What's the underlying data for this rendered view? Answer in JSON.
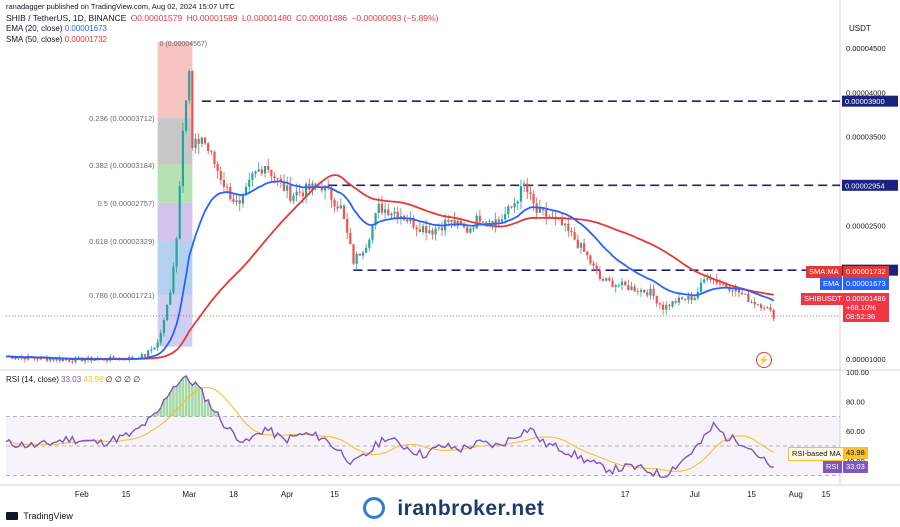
{
  "header": {
    "author_line": "ranadagger published on TradingView.com, Aug 02, 2024 15:07 UTC",
    "symbol": "SHIB / TetherUS, 1D, BINANCE",
    "ohlc": {
      "open": "O0.00001579",
      "high": "H0.00001589",
      "low": "L0.00001480",
      "close": "C0.00001486",
      "change": "−0.00000093 (−5.89%)"
    },
    "ema_label": "EMA (20, close)",
    "ema_value": "0.00001673",
    "sma_label": "SMA (50, close)",
    "sma_value": "0.00001732",
    "currency": "USDT"
  },
  "price_axis": {
    "ticks": [
      {
        "label": "0.00004500",
        "value": 4.5e-05
      },
      {
        "label": "0.00004000",
        "value": 4e-05
      },
      {
        "label": "0.00003500",
        "value": 3.5e-05
      },
      {
        "label": "0.00002500",
        "value": 2.5e-05
      },
      {
        "label": "0.00001000",
        "value": 1e-05
      }
    ]
  },
  "levels": [
    {
      "label": "0.00003900",
      "value": 3.9e-05
    },
    {
      "label": "0.00002954",
      "value": 2.954e-05
    },
    {
      "label": "0.00002000",
      "value": 2e-05
    }
  ],
  "fib": [
    {
      "label": "0.236 (0.00003712)",
      "value": 3.712e-05,
      "fill": "#f4b8b8"
    },
    {
      "label": "0.382 (0.00003184)",
      "value": 3.184e-05,
      "fill": "#bdbdbd"
    },
    {
      "label": "0.5 (0.00002757)",
      "value": 2.757e-05,
      "fill": "#a8dca8"
    },
    {
      "label": "0.618 (0.00002329)",
      "value": 2.329e-05,
      "fill": "#c9b8e6"
    },
    {
      "label": "0.786 (0.00001721)",
      "value": 1.721e-05,
      "fill": "#a8c8ec"
    },
    {
      "label": "",
      "value": 1.14e-05,
      "fill": "#c7c7ee"
    }
  ],
  "fib_top": {
    "label": "0 (0.00004567)",
    "value": 4.567e-05
  },
  "price_tags": [
    {
      "name": "SMA:MA",
      "value": "0.00001732",
      "color": "#e53935"
    },
    {
      "name": "EMA",
      "value": "0.00001673",
      "color": "#2962ff"
    },
    {
      "name": "SHIBUSDT",
      "value": "0.00001486",
      "change": "+68.10%",
      "countdown": "08:52:36",
      "color": "#f23645"
    }
  ],
  "rsi": {
    "label": "RSI (14, close)",
    "value": "33.03",
    "ma_value": "43.98",
    "dots": "∅ ∅ ∅ ∅",
    "axis": [
      "100.00",
      "80.00",
      "60.00",
      "40.00"
    ],
    "tag_ma": "RSI-based MA",
    "tag_rsi": "RSI",
    "ma_tag_value": "43.98",
    "rsi_tag_value": "33.03"
  },
  "time_axis": [
    "Feb",
    "15",
    "Mar",
    "18",
    "Apr",
    "15",
    "17",
    "Jul",
    "15",
    "Aug",
    "15"
  ],
  "footer": {
    "brand": "TradingView",
    "watermark": "iranbroker.net"
  },
  "chart_data": {
    "type": "candlestick",
    "title": "SHIB / TetherUS, 1D, BINANCE",
    "ylabel": "USDT",
    "ylim": [
      9e-06,
      4.7e-05
    ],
    "series": [
      {
        "name": "EMA (20, close)",
        "color": "#2962ff"
      },
      {
        "name": "SMA (50, close)",
        "color": "#e53935"
      }
    ],
    "close_points": [
      [
        0,
        1.03e-05
      ],
      [
        10,
        1.01e-05
      ],
      [
        20,
        9.9e-06
      ],
      [
        30,
        1e-05
      ],
      [
        40,
        1.01e-05
      ],
      [
        44,
        1.04e-05
      ],
      [
        48,
        1.18e-05
      ],
      [
        50,
        1.42e-05
      ],
      [
        52,
        1.78e-05
      ],
      [
        54,
        2.36e-05
      ],
      [
        56,
        3.65e-05
      ],
      [
        58,
        4.2e-05
      ],
      [
        59,
        3.35e-05
      ],
      [
        62,
        3.5e-05
      ],
      [
        66,
        3.2e-05
      ],
      [
        70,
        2.9e-05
      ],
      [
        74,
        2.7e-05
      ],
      [
        78,
        3.05e-05
      ],
      [
        82,
        3.2e-05
      ],
      [
        86,
        3e-05
      ],
      [
        90,
        2.85e-05
      ],
      [
        95,
        2.9e-05
      ],
      [
        100,
        2.95e-05
      ],
      [
        106,
        2.7e-05
      ],
      [
        110,
        2.1e-05
      ],
      [
        114,
        2.3e-05
      ],
      [
        118,
        2.7e-05
      ],
      [
        124,
        2.65e-05
      ],
      [
        130,
        2.5e-05
      ],
      [
        135,
        2.45e-05
      ],
      [
        140,
        2.55e-05
      ],
      [
        146,
        2.45e-05
      ],
      [
        150,
        2.6e-05
      ],
      [
        156,
        2.55e-05
      ],
      [
        160,
        2.7e-05
      ],
      [
        164,
        2.95e-05
      ],
      [
        168,
        2.65e-05
      ],
      [
        172,
        2.6e-05
      ],
      [
        176,
        2.5e-05
      ],
      [
        180,
        2.35e-05
      ],
      [
        184,
        2.15e-05
      ],
      [
        188,
        1.9e-05
      ],
      [
        192,
        1.85e-05
      ],
      [
        198,
        1.8e-05
      ],
      [
        204,
        1.75e-05
      ],
      [
        208,
        1.58e-05
      ],
      [
        212,
        1.65e-05
      ],
      [
        218,
        1.7e-05
      ],
      [
        222,
        1.95e-05
      ],
      [
        226,
        1.85e-05
      ],
      [
        230,
        1.8e-05
      ],
      [
        236,
        1.65e-05
      ],
      [
        240,
        1.6e-05
      ],
      [
        243,
        1.49e-05
      ]
    ],
    "rsi_points": [
      [
        0,
        52
      ],
      [
        10,
        50
      ],
      [
        20,
        55
      ],
      [
        30,
        52
      ],
      [
        40,
        58
      ],
      [
        48,
        72
      ],
      [
        52,
        88
      ],
      [
        56,
        96
      ],
      [
        60,
        92
      ],
      [
        64,
        80
      ],
      [
        70,
        62
      ],
      [
        76,
        52
      ],
      [
        82,
        62
      ],
      [
        88,
        54
      ],
      [
        94,
        58
      ],
      [
        100,
        56
      ],
      [
        106,
        46
      ],
      [
        110,
        38
      ],
      [
        114,
        44
      ],
      [
        120,
        56
      ],
      [
        126,
        50
      ],
      [
        132,
        44
      ],
      [
        138,
        50
      ],
      [
        144,
        48
      ],
      [
        150,
        52
      ],
      [
        156,
        50
      ],
      [
        162,
        58
      ],
      [
        166,
        62
      ],
      [
        170,
        52
      ],
      [
        176,
        48
      ],
      [
        182,
        42
      ],
      [
        188,
        36
      ],
      [
        192,
        34
      ],
      [
        198,
        36
      ],
      [
        204,
        33
      ],
      [
        208,
        30
      ],
      [
        214,
        40
      ],
      [
        220,
        52
      ],
      [
        224,
        64
      ],
      [
        228,
        56
      ],
      [
        234,
        52
      ],
      [
        240,
        40
      ],
      [
        243,
        33
      ]
    ],
    "rsi_ylim": [
      25,
      100
    ]
  }
}
